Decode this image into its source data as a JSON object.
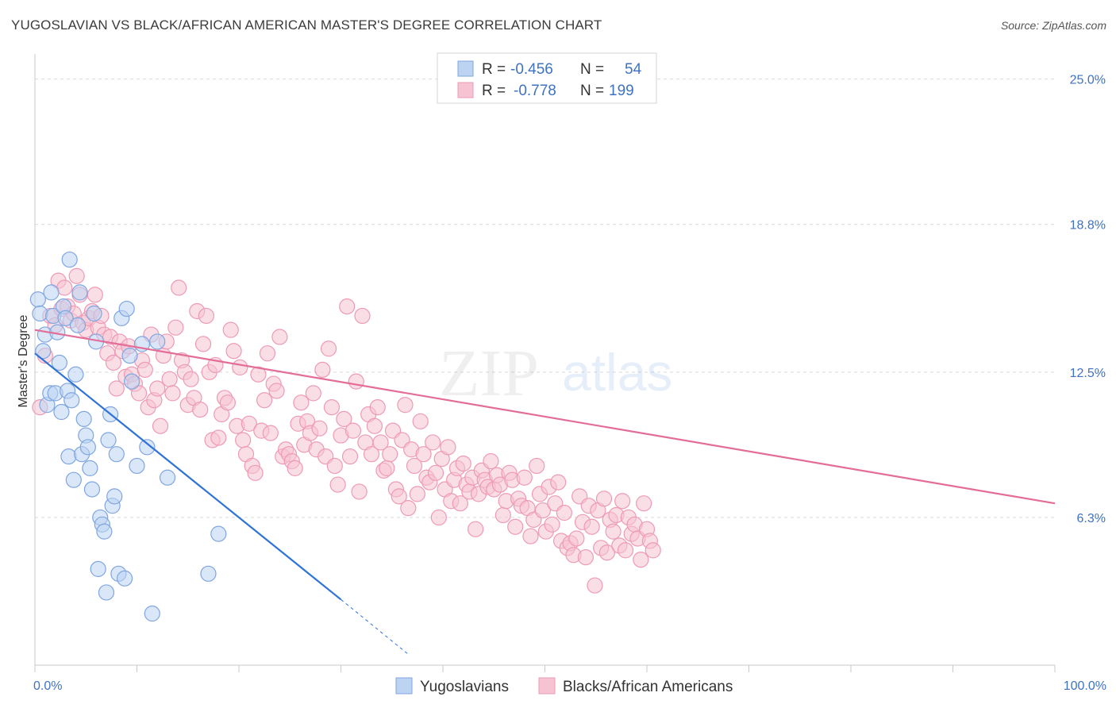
{
  "title": "YUGOSLAVIAN VS BLACK/AFRICAN AMERICAN MASTER'S DEGREE CORRELATION CHART",
  "source": "Source: ZipAtlas.com",
  "watermark": {
    "zip": "ZIP",
    "atlas": "atlas"
  },
  "colors": {
    "blue_fill": "#bcd3f2",
    "blue_stroke": "#7fa6e0",
    "blue_line": "#2f73d6",
    "pink_fill": "#f6c3d2",
    "pink_stroke": "#ee9ab5",
    "pink_line": "#e36d98",
    "axis_label": "#3f72c2",
    "grid": "#d9d9d9"
  },
  "legend": {
    "rows": [
      {
        "r_label": "R =",
        "r_value": "-0.456",
        "n_label": "N =",
        "n_value": "54",
        "series": "blue"
      },
      {
        "r_label": "R =",
        "r_value": "-0.778",
        "n_label": "N =",
        "n_value": "199",
        "series": "pink"
      }
    ]
  },
  "bottom_legend": [
    "Yugoslavians",
    "Blacks/African Americans"
  ],
  "chart_data": {
    "type": "scatter",
    "xlabel": "",
    "ylabel": "Master's Degree",
    "xlim": [
      0,
      100
    ],
    "ylim": [
      0,
      25.8
    ],
    "x_tick_labels": [
      "0.0%",
      "100.0%"
    ],
    "y_ticks": [
      6.3,
      12.5,
      18.8,
      25.0
    ],
    "y_tick_labels": [
      "6.3%",
      "12.5%",
      "18.8%",
      "25.0%"
    ],
    "grid": true,
    "legend_position": "top-center",
    "series": [
      {
        "name": "Yugoslavians",
        "color": "blue",
        "trend": {
          "x": [
            0,
            30
          ],
          "y": [
            13.3,
            2.8
          ],
          "dash_to": [
            36.5,
            0.5
          ]
        },
        "points": [
          [
            0.3,
            15.6
          ],
          [
            0.5,
            15.0
          ],
          [
            0.8,
            13.4
          ],
          [
            1.0,
            14.1
          ],
          [
            1.2,
            11.1
          ],
          [
            1.5,
            11.6
          ],
          [
            1.6,
            15.9
          ],
          [
            1.8,
            14.9
          ],
          [
            2.0,
            11.6
          ],
          [
            2.2,
            14.2
          ],
          [
            2.4,
            12.9
          ],
          [
            2.6,
            10.8
          ],
          [
            2.8,
            15.3
          ],
          [
            3.0,
            14.8
          ],
          [
            3.2,
            11.7
          ],
          [
            3.3,
            8.9
          ],
          [
            3.4,
            17.3
          ],
          [
            3.6,
            11.3
          ],
          [
            3.8,
            7.9
          ],
          [
            4.0,
            12.4
          ],
          [
            4.2,
            14.5
          ],
          [
            4.4,
            15.9
          ],
          [
            4.6,
            9.0
          ],
          [
            4.8,
            10.5
          ],
          [
            5.0,
            9.8
          ],
          [
            5.2,
            9.3
          ],
          [
            5.4,
            8.4
          ],
          [
            5.6,
            7.5
          ],
          [
            5.8,
            15.0
          ],
          [
            6.0,
            13.8
          ],
          [
            6.2,
            4.1
          ],
          [
            6.4,
            6.3
          ],
          [
            6.6,
            6.0
          ],
          [
            6.8,
            5.7
          ],
          [
            7.0,
            3.1
          ],
          [
            7.2,
            9.6
          ],
          [
            7.4,
            10.7
          ],
          [
            7.6,
            6.8
          ],
          [
            7.8,
            7.2
          ],
          [
            8.0,
            9.0
          ],
          [
            8.2,
            3.9
          ],
          [
            8.5,
            14.8
          ],
          [
            8.8,
            3.7
          ],
          [
            9.0,
            15.2
          ],
          [
            9.3,
            13.2
          ],
          [
            9.5,
            12.1
          ],
          [
            10.0,
            8.5
          ],
          [
            10.5,
            13.7
          ],
          [
            11.0,
            9.3
          ],
          [
            11.5,
            2.2
          ],
          [
            12.0,
            13.8
          ],
          [
            13.0,
            8.0
          ],
          [
            17.0,
            3.9
          ],
          [
            18.0,
            5.6
          ]
        ]
      },
      {
        "name": "Blacks/African Americans",
        "color": "pink",
        "trend": {
          "x": [
            0,
            100
          ],
          "y": [
            14.3,
            6.9
          ]
        },
        "points": [
          [
            0.5,
            11.0
          ],
          [
            1.0,
            13.2
          ],
          [
            1.5,
            14.9
          ],
          [
            2.0,
            14.5
          ],
          [
            2.3,
            16.4
          ],
          [
            2.6,
            15.2
          ],
          [
            2.9,
            16.1
          ],
          [
            3.2,
            15.3
          ],
          [
            3.5,
            14.7
          ],
          [
            3.8,
            15.0
          ],
          [
            4.1,
            16.6
          ],
          [
            4.4,
            15.8
          ],
          [
            4.7,
            14.6
          ],
          [
            5.0,
            14.3
          ],
          [
            5.3,
            14.8
          ],
          [
            5.6,
            15.1
          ],
          [
            5.9,
            15.8
          ],
          [
            6.2,
            14.4
          ],
          [
            6.5,
            14.9
          ],
          [
            6.8,
            14.1
          ],
          [
            7.1,
            13.3
          ],
          [
            7.4,
            14.0
          ],
          [
            7.7,
            12.9
          ],
          [
            8.0,
            11.8
          ],
          [
            8.3,
            13.8
          ],
          [
            8.6,
            13.4
          ],
          [
            8.9,
            12.3
          ],
          [
            9.2,
            13.6
          ],
          [
            9.5,
            12.4
          ],
          [
            9.8,
            12.0
          ],
          [
            10.2,
            11.6
          ],
          [
            10.5,
            13.0
          ],
          [
            10.8,
            12.6
          ],
          [
            11.1,
            11.0
          ],
          [
            11.4,
            14.1
          ],
          [
            11.7,
            11.3
          ],
          [
            12.0,
            11.8
          ],
          [
            12.3,
            10.2
          ],
          [
            12.6,
            13.2
          ],
          [
            12.9,
            13.8
          ],
          [
            13.2,
            12.2
          ],
          [
            13.5,
            11.6
          ],
          [
            13.8,
            14.4
          ],
          [
            14.1,
            16.1
          ],
          [
            14.4,
            13.0
          ],
          [
            14.7,
            12.5
          ],
          [
            15.0,
            11.1
          ],
          [
            15.3,
            12.2
          ],
          [
            15.6,
            11.4
          ],
          [
            15.9,
            15.1
          ],
          [
            16.2,
            10.9
          ],
          [
            16.5,
            13.7
          ],
          [
            16.8,
            14.9
          ],
          [
            17.1,
            12.5
          ],
          [
            17.4,
            9.6
          ],
          [
            17.7,
            12.8
          ],
          [
            18.0,
            9.7
          ],
          [
            18.3,
            10.7
          ],
          [
            18.6,
            11.4
          ],
          [
            18.9,
            11.2
          ],
          [
            19.2,
            14.3
          ],
          [
            19.5,
            13.4
          ],
          [
            19.8,
            10.2
          ],
          [
            20.1,
            12.7
          ],
          [
            20.4,
            9.6
          ],
          [
            20.7,
            9.0
          ],
          [
            21.0,
            10.3
          ],
          [
            21.3,
            8.5
          ],
          [
            21.6,
            8.2
          ],
          [
            21.9,
            12.4
          ],
          [
            22.2,
            10.0
          ],
          [
            22.5,
            11.3
          ],
          [
            22.8,
            13.3
          ],
          [
            23.1,
            9.9
          ],
          [
            23.4,
            12.0
          ],
          [
            23.7,
            11.7
          ],
          [
            24.0,
            14.0
          ],
          [
            24.3,
            8.9
          ],
          [
            24.6,
            9.2
          ],
          [
            24.9,
            9.0
          ],
          [
            25.2,
            8.7
          ],
          [
            25.5,
            8.4
          ],
          [
            25.8,
            10.3
          ],
          [
            26.1,
            11.2
          ],
          [
            26.4,
            9.4
          ],
          [
            26.7,
            10.4
          ],
          [
            27.0,
            9.9
          ],
          [
            27.3,
            11.6
          ],
          [
            27.6,
            9.2
          ],
          [
            27.9,
            10.1
          ],
          [
            28.2,
            12.6
          ],
          [
            28.5,
            8.9
          ],
          [
            28.8,
            13.5
          ],
          [
            29.1,
            11.0
          ],
          [
            29.4,
            8.5
          ],
          [
            29.7,
            7.7
          ],
          [
            30.0,
            9.8
          ],
          [
            30.3,
            10.5
          ],
          [
            30.6,
            15.3
          ],
          [
            30.9,
            8.9
          ],
          [
            31.2,
            10.0
          ],
          [
            31.5,
            12.1
          ],
          [
            31.8,
            7.4
          ],
          [
            32.1,
            14.9
          ],
          [
            32.4,
            9.5
          ],
          [
            32.7,
            10.7
          ],
          [
            33.0,
            9.0
          ],
          [
            33.3,
            10.2
          ],
          [
            33.6,
            11.0
          ],
          [
            33.9,
            9.5
          ],
          [
            34.2,
            8.3
          ],
          [
            34.5,
            8.4
          ],
          [
            34.8,
            9.0
          ],
          [
            35.1,
            10.0
          ],
          [
            35.4,
            7.5
          ],
          [
            35.7,
            7.2
          ],
          [
            36.0,
            9.6
          ],
          [
            36.3,
            11.1
          ],
          [
            36.6,
            6.7
          ],
          [
            36.9,
            9.2
          ],
          [
            37.2,
            8.5
          ],
          [
            37.5,
            7.3
          ],
          [
            37.8,
            10.4
          ],
          [
            38.1,
            9.0
          ],
          [
            38.4,
            8.0
          ],
          [
            38.7,
            7.8
          ],
          [
            39.0,
            9.5
          ],
          [
            39.3,
            8.2
          ],
          [
            39.6,
            6.3
          ],
          [
            39.9,
            8.8
          ],
          [
            40.2,
            7.5
          ],
          [
            40.5,
            9.3
          ],
          [
            40.8,
            7.0
          ],
          [
            41.1,
            7.9
          ],
          [
            41.4,
            8.4
          ],
          [
            41.7,
            6.9
          ],
          [
            42.0,
            8.6
          ],
          [
            42.3,
            7.7
          ],
          [
            42.6,
            7.4
          ],
          [
            42.9,
            8.0
          ],
          [
            43.2,
            5.8
          ],
          [
            43.5,
            7.3
          ],
          [
            43.8,
            8.3
          ],
          [
            44.1,
            7.9
          ],
          [
            44.4,
            7.6
          ],
          [
            44.7,
            8.7
          ],
          [
            45.0,
            7.5
          ],
          [
            45.3,
            8.1
          ],
          [
            45.6,
            7.7
          ],
          [
            45.9,
            6.4
          ],
          [
            46.2,
            7.0
          ],
          [
            46.5,
            8.2
          ],
          [
            46.8,
            7.9
          ],
          [
            47.1,
            5.9
          ],
          [
            47.4,
            7.1
          ],
          [
            47.7,
            6.8
          ],
          [
            48.0,
            8.0
          ],
          [
            48.3,
            6.7
          ],
          [
            48.6,
            5.5
          ],
          [
            48.9,
            6.2
          ],
          [
            49.2,
            8.5
          ],
          [
            49.5,
            7.3
          ],
          [
            49.8,
            6.6
          ],
          [
            50.1,
            5.7
          ],
          [
            50.4,
            7.6
          ],
          [
            50.7,
            6.0
          ],
          [
            51.0,
            6.9
          ],
          [
            51.3,
            7.8
          ],
          [
            51.6,
            5.3
          ],
          [
            51.9,
            6.5
          ],
          [
            52.2,
            5.0
          ],
          [
            52.5,
            5.2
          ],
          [
            52.8,
            4.7
          ],
          [
            53.1,
            5.4
          ],
          [
            53.4,
            7.2
          ],
          [
            53.7,
            6.1
          ],
          [
            54.0,
            4.6
          ],
          [
            54.3,
            6.8
          ],
          [
            54.6,
            5.9
          ],
          [
            54.9,
            3.4
          ],
          [
            55.2,
            6.6
          ],
          [
            55.5,
            5.0
          ],
          [
            55.8,
            7.1
          ],
          [
            56.1,
            4.8
          ],
          [
            56.4,
            6.2
          ],
          [
            56.7,
            5.7
          ],
          [
            57.0,
            6.4
          ],
          [
            57.3,
            5.1
          ],
          [
            57.6,
            7.0
          ],
          [
            57.9,
            4.9
          ],
          [
            58.2,
            6.3
          ],
          [
            58.5,
            5.6
          ],
          [
            58.8,
            6.0
          ],
          [
            59.1,
            5.4
          ],
          [
            59.4,
            4.5
          ],
          [
            59.7,
            6.9
          ],
          [
            60.0,
            5.8
          ],
          [
            60.3,
            5.3
          ],
          [
            60.6,
            4.9
          ]
        ]
      }
    ]
  }
}
